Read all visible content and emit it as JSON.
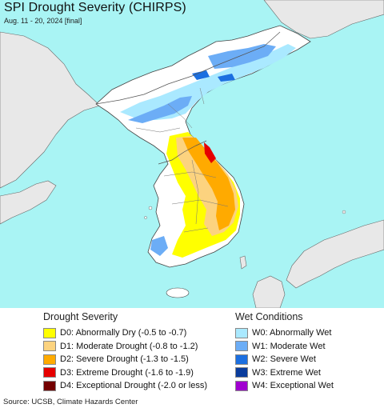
{
  "title": "SPI Drought Severity (CHIRPS)",
  "subtitle": "Aug. 11 - 20, 2024 [final]",
  "legend": {
    "drought_heading": "Drought Severity",
    "drought_items": [
      {
        "label": "D0: Abnormally Dry (-0.5 to -0.7)",
        "color": "#ffff00"
      },
      {
        "label": "D1: Moderate Drought (-0.8 to -1.2)",
        "color": "#fcd37f"
      },
      {
        "label": "D2: Severe Drought (-1.3 to -1.5)",
        "color": "#ffaa00"
      },
      {
        "label": "D3: Extreme Drought (-1.6 to -1.9)",
        "color": "#e60000"
      },
      {
        "label": "D4: Exceptional Drought (-2.0 or less)",
        "color": "#730000"
      }
    ],
    "wet_heading": "Wet Conditions",
    "wet_items": [
      {
        "label": "W0: Abnormally Wet",
        "color": "#aae9ff"
      },
      {
        "label": "W1: Moderate Wet",
        "color": "#6cadf6"
      },
      {
        "label": "W2: Severe Wet",
        "color": "#1c6fe0"
      },
      {
        "label": "W3: Extreme Wet",
        "color": "#0a3c9c"
      },
      {
        "label": "W4: Exceptional Wet",
        "color": "#a000d0"
      }
    ]
  },
  "source": "Source: UCSB, Climate Hazards Center",
  "colors": {
    "water": "#a9f4f4",
    "land_no_data": "#e8e8e8",
    "land_normal": "#ffffff",
    "borders": "#555555"
  }
}
